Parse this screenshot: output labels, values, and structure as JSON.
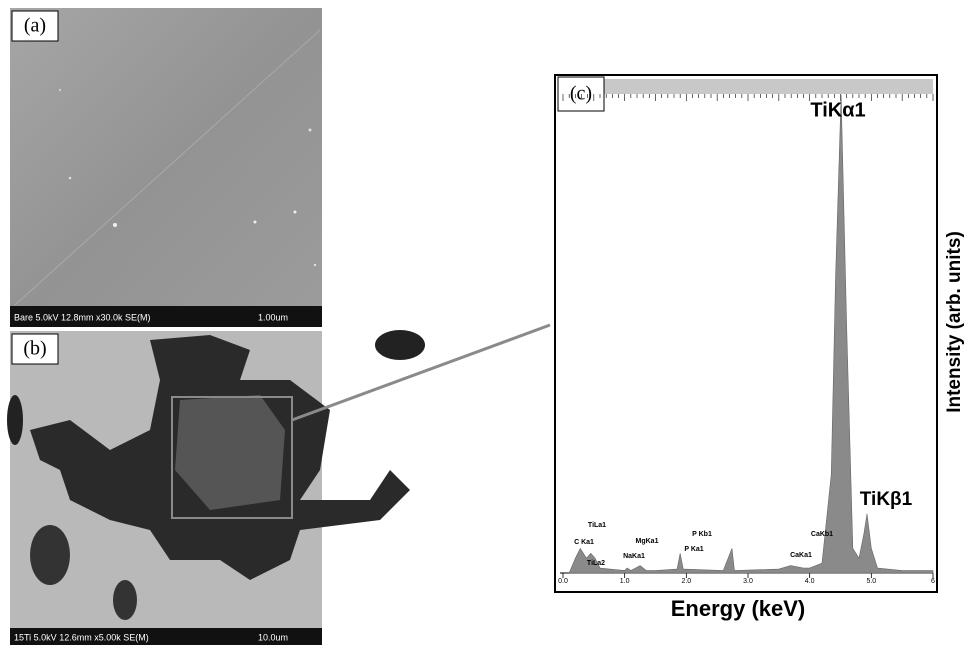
{
  "panels": {
    "a": {
      "label": "(a)",
      "caption": "Bare 5.0kV 12.8mm x30.0k SE(M)",
      "scale": "1.00um"
    },
    "b": {
      "label": "(b)",
      "caption": "15Ti 5.0kV 12.6mm x5.00k SE(M)",
      "scale": "10.0um"
    }
  },
  "chart_data": {
    "type": "area",
    "label": "(c)",
    "x_label": "Energy (keV)",
    "y_label": "Intensity (arb. units)",
    "x": [
      0.1,
      0.2,
      0.28,
      0.38,
      0.45,
      0.52,
      0.6,
      1.0,
      1.04,
      1.1,
      1.25,
      1.35,
      1.5,
      1.85,
      1.9,
      1.95,
      2.6,
      2.74,
      2.78,
      3.5,
      3.69,
      3.9,
      4.0,
      4.2,
      4.35,
      4.42,
      4.51,
      4.6,
      4.7,
      4.8,
      4.88,
      4.93,
      5.0,
      5.1,
      5.5,
      6.0
    ],
    "values": [
      0,
      3,
      5,
      3,
      4,
      3,
      1,
      0.5,
      1,
      0.5,
      1.5,
      0.5,
      0.5,
      0.8,
      4,
      0.8,
      0.5,
      5,
      0.5,
      0.8,
      1.5,
      1,
      1,
      2,
      20,
      60,
      97,
      50,
      5,
      3,
      8,
      12,
      5,
      1,
      0.5,
      0.5
    ],
    "color": "#8a8a8a",
    "xlim": [
      0,
      6
    ],
    "ylim": [
      0,
      100
    ],
    "xticks": [
      {
        "value": 0,
        "label": "0.0"
      },
      {
        "value": 1,
        "label": "1.0"
      },
      {
        "value": 2,
        "label": "2.0"
      },
      {
        "value": 3,
        "label": "3.0"
      },
      {
        "value": 4,
        "label": "4.0"
      },
      {
        "value": 5,
        "label": "5.0"
      },
      6
    ],
    "annotations": [
      "TiKα1",
      "TiKβ1",
      "TiLa1",
      "C Ka1",
      "TiLa2",
      "MgKa1",
      "NaKa1",
      "P Kb1",
      "P Ka1",
      "CaKb1",
      "CaKa1"
    ]
  }
}
